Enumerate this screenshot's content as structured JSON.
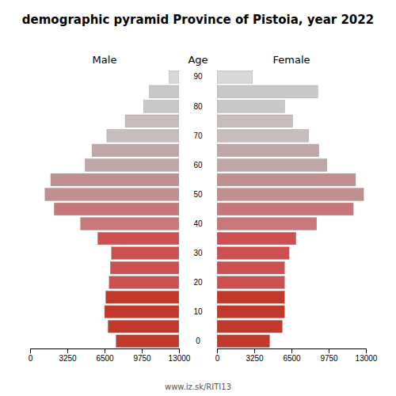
{
  "chart_data": {
    "type": "bar",
    "orientation": "horizontal",
    "title": "demographic pyramid Province of Pistoia, year 2022",
    "y_label": "Age",
    "annotations": [
      "www.iz.sk/RITI13"
    ],
    "categories": [
      "0",
      null,
      "10",
      null,
      "20",
      null,
      "30",
      null,
      "40",
      null,
      "50",
      null,
      "60",
      null,
      "70",
      null,
      "80",
      null,
      "90"
    ],
    "series": [
      {
        "name": "Male",
        "axis": "x2",
        "values": [
          5500,
          6200,
          6500,
          6400,
          6100,
          6000,
          5900,
          7100,
          8600,
          10900,
          11700,
          11200,
          8200,
          7600,
          6300,
          4700,
          3100,
          2600,
          850
        ],
        "colors": [
          "#c0392b",
          "#c0392b",
          "#c0392b",
          "#c0392b",
          "#cd5050",
          "#cd5050",
          "#cd5050",
          "#cd5050",
          "#c87878",
          "#c87878",
          "#c09090",
          "#c09090",
          "#c0a8a8",
          "#c0a8a8",
          "#c8bcbc",
          "#c8bcbc",
          "#c8c8c8",
          "#c8c8c8",
          "#d8d8d8"
        ]
      },
      {
        "name": "Female",
        "values": [
          4600,
          5700,
          5900,
          5900,
          5900,
          5900,
          6300,
          6900,
          8700,
          11900,
          12800,
          12100,
          9600,
          8900,
          8000,
          6600,
          5900,
          8800,
          3100
        ],
        "colors": [
          "#c0392b",
          "#c0392b",
          "#c0392b",
          "#c0392b",
          "#cd5050",
          "#cd5050",
          "#cd5050",
          "#cd5050",
          "#c87878",
          "#c87878",
          "#c09090",
          "#c09090",
          "#c0a8a8",
          "#c0a8a8",
          "#c8bcbc",
          "#c8bcbc",
          "#c8c8c8",
          "#c8c8c8",
          "#d8d8d8"
        ]
      }
    ],
    "xlim": [
      0,
      13000
    ],
    "xticks": [
      0,
      3250,
      6500,
      9750,
      13000
    ],
    "x2lim": [
      13000,
      0
    ],
    "x2ticks": [
      {
        "value": 0,
        "label": "13000"
      },
      {
        "value": 3250,
        "label": "9750"
      },
      {
        "value": 6500,
        "label": "6500"
      },
      {
        "value": 9750,
        "label": "3250"
      },
      {
        "value": 13000,
        "label": "0"
      }
    ],
    "grid": false
  }
}
